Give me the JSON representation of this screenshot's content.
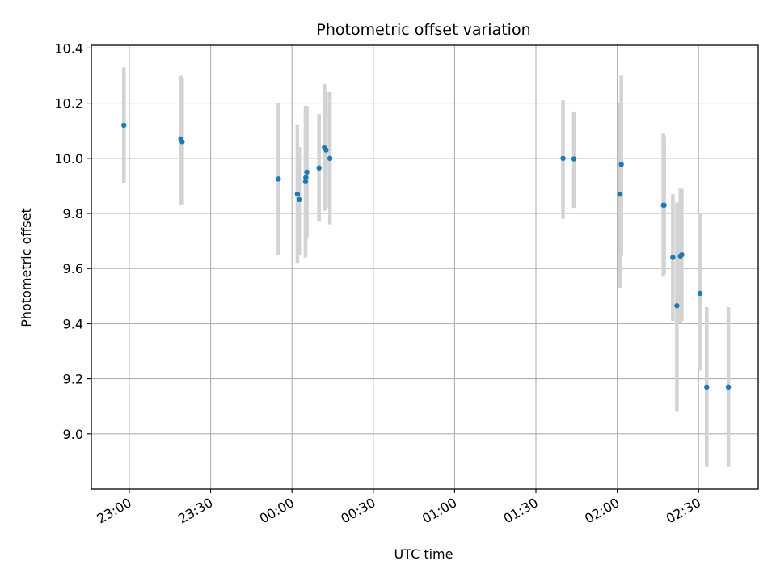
{
  "chart_data": {
    "type": "scatter",
    "title": "Photometric offset variation",
    "xlabel": "UTC time",
    "ylabel": "Photometric offset",
    "grid": true,
    "x_axis": {
      "kind": "time",
      "range": [
        "22:46",
        "02:52"
      ],
      "ticks": [
        "23:00",
        "23:30",
        "00:00",
        "00:30",
        "01:00",
        "01:30",
        "02:00",
        "02:30"
      ]
    },
    "y_axis": {
      "range": [
        8.8,
        10.41
      ],
      "ticks": [
        "9.0",
        "9.2",
        "9.4",
        "9.6",
        "9.8",
        "10.0",
        "10.2",
        "10.4"
      ]
    },
    "marker_color": "#1f77b4",
    "errorbar_color": "#d3d3d3",
    "points": [
      {
        "x": "22:58",
        "y": 10.12,
        "ylo": 9.91,
        "yhi": 10.33
      },
      {
        "x": "23:19",
        "y": 10.07,
        "ylo": 9.83,
        "yhi": 10.3
      },
      {
        "x": "23:19.5",
        "y": 10.06,
        "ylo": 9.83,
        "yhi": 10.29
      },
      {
        "x": "23:55",
        "y": 9.925,
        "ylo": 9.65,
        "yhi": 10.2
      },
      {
        "x": "00:02",
        "y": 9.87,
        "ylo": 9.62,
        "yhi": 10.12
      },
      {
        "x": "00:02.7",
        "y": 9.85,
        "ylo": 9.65,
        "yhi": 10.04
      },
      {
        "x": "00:05",
        "y": 9.915,
        "ylo": 9.64,
        "yhi": 10.19
      },
      {
        "x": "00:05.1",
        "y": 9.93,
        "ylo": 9.7,
        "yhi": 10.15
      },
      {
        "x": "00:05.5",
        "y": 9.95,
        "ylo": 9.71,
        "yhi": 10.19
      },
      {
        "x": "00:10",
        "y": 9.965,
        "ylo": 9.77,
        "yhi": 10.16
      },
      {
        "x": "00:12",
        "y": 10.04,
        "ylo": 9.81,
        "yhi": 10.27
      },
      {
        "x": "00:12.6",
        "y": 10.03,
        "ylo": 9.82,
        "yhi": 10.24
      },
      {
        "x": "00:14",
        "y": 10.0,
        "ylo": 9.76,
        "yhi": 10.24
      },
      {
        "x": "01:40",
        "y": 10.0,
        "ylo": 9.78,
        "yhi": 10.21
      },
      {
        "x": "01:44",
        "y": 9.998,
        "ylo": 9.82,
        "yhi": 10.17
      },
      {
        "x": "02:01",
        "y": 9.87,
        "ylo": 9.53,
        "yhi": 10.2
      },
      {
        "x": "02:01.5",
        "y": 9.978,
        "ylo": 9.65,
        "yhi": 10.3
      },
      {
        "x": "02:17",
        "y": 9.83,
        "ylo": 9.57,
        "yhi": 10.09
      },
      {
        "x": "02:17.3",
        "y": 9.83,
        "ylo": 9.58,
        "yhi": 10.08
      },
      {
        "x": "02:20.5",
        "y": 9.64,
        "ylo": 9.41,
        "yhi": 9.87
      },
      {
        "x": "02:22",
        "y": 9.465,
        "ylo": 9.08,
        "yhi": 9.84
      },
      {
        "x": "02:23.3",
        "y": 9.645,
        "ylo": 9.4,
        "yhi": 9.89
      },
      {
        "x": "02:23.8",
        "y": 9.65,
        "ylo": 9.41,
        "yhi": 9.89
      },
      {
        "x": "02:30.5",
        "y": 9.51,
        "ylo": 9.23,
        "yhi": 9.8
      },
      {
        "x": "02:33",
        "y": 9.17,
        "ylo": 8.88,
        "yhi": 9.46
      },
      {
        "x": "02:41",
        "y": 9.17,
        "ylo": 8.88,
        "yhi": 9.46
      }
    ]
  }
}
